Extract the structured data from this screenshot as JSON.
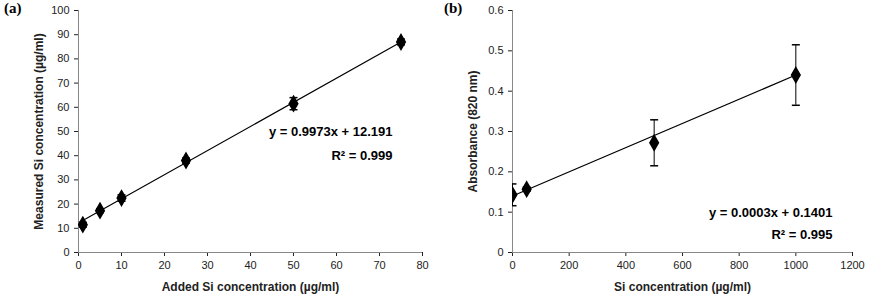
{
  "chart_data": [
    {
      "type": "scatter",
      "title": "(a)",
      "x_label": "Added Si concentration (µg/ml)",
      "y_label": "Measured Si concentration (µg/ml)",
      "x": [
        1,
        5,
        10,
        25,
        50,
        75
      ],
      "values": [
        11.5,
        17.3,
        22.5,
        38.0,
        61.5,
        87.0
      ],
      "errors": [
        1.0,
        0.8,
        1.3,
        1.0,
        2.5,
        1.2
      ],
      "trendline": {
        "x": [
          1,
          75
        ],
        "values": [
          13.2,
          87.0
        ]
      },
      "annotations": [
        "y = 0.9973x + 12.191",
        "R² = 0.999"
      ],
      "color": "#000000",
      "marker": "diamond",
      "grid": false,
      "xlim": [
        0,
        80
      ],
      "xticks": [
        0,
        10,
        20,
        30,
        40,
        50,
        60,
        70,
        80
      ],
      "ylim": [
        0,
        100
      ],
      "yticks": [
        0,
        10,
        20,
        30,
        40,
        50,
        60,
        70,
        80,
        90,
        100
      ]
    },
    {
      "type": "scatter",
      "title": "(b)",
      "x_label": "Si concentration (µg/ml)",
      "y_label": "Absorbance (820 nm)",
      "x": [
        0,
        50,
        500,
        1000
      ],
      "values": [
        0.143,
        0.157,
        0.272,
        0.44
      ],
      "errors": [
        0.027,
        0.005,
        0.057,
        0.075
      ],
      "trendline": {
        "x": [
          0,
          1000
        ],
        "values": [
          0.14,
          0.44
        ]
      },
      "annotations": [
        "y = 0.0003x + 0.1401",
        "R² = 0.995"
      ],
      "color": "#000000",
      "marker": "diamond",
      "grid": false,
      "xlim": [
        0,
        1200
      ],
      "xticks": [
        0,
        200,
        400,
        600,
        800,
        1000,
        1200
      ],
      "ylim": [
        0,
        0.6
      ],
      "yticks": [
        0,
        0.1,
        0.2,
        0.3,
        0.4,
        0.5,
        0.6
      ]
    }
  ]
}
